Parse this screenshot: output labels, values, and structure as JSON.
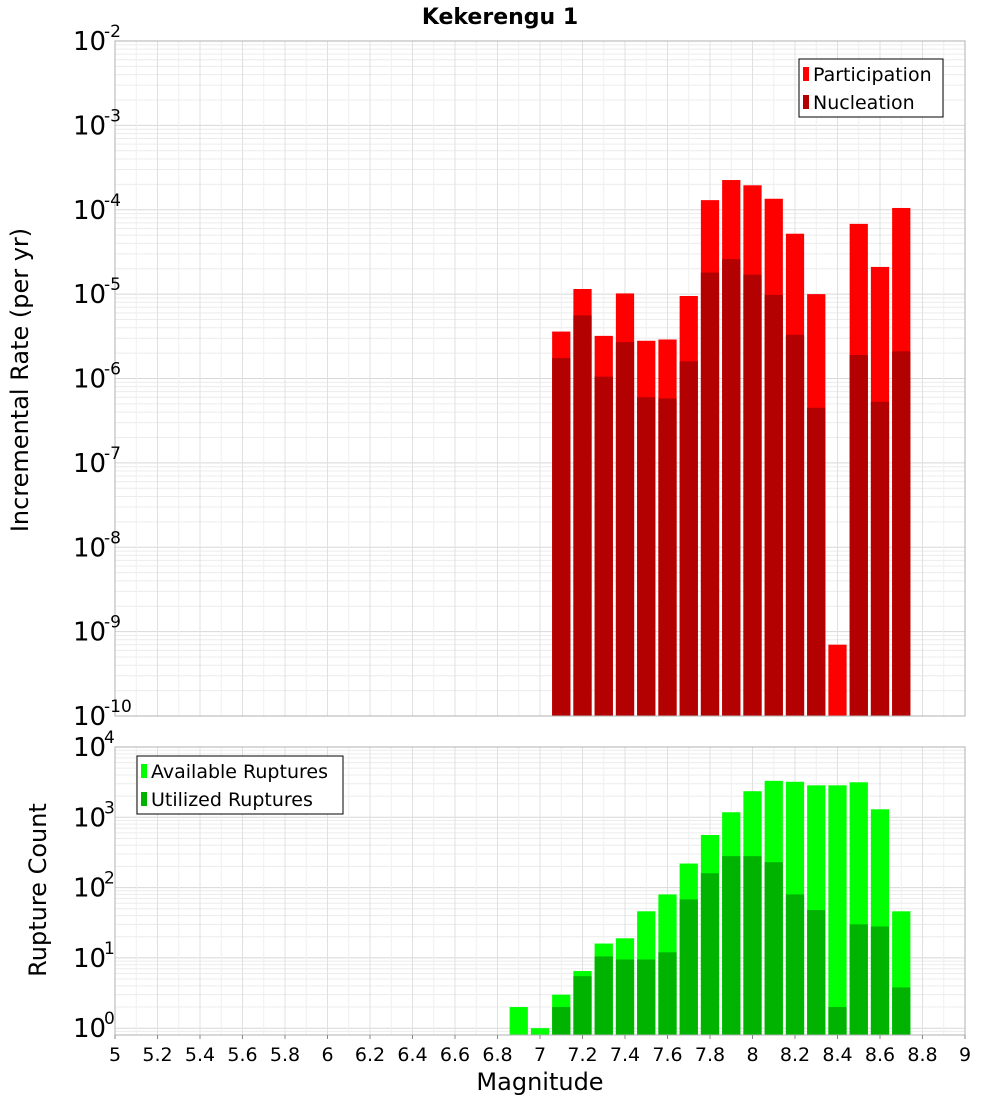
{
  "chart_data": [
    {
      "type": "bar",
      "title": "Kekerengu 1",
      "xlabel": "",
      "ylabel": "Incremental Rate (per yr)",
      "yscale": "log",
      "ylim": [
        1e-10,
        0.01
      ],
      "xlim": [
        5,
        9
      ],
      "legend_position": "top-right",
      "grid": true,
      "x": [
        7.1,
        7.2,
        7.3,
        7.4,
        7.5,
        7.6,
        7.7,
        7.8,
        7.9,
        8.0,
        8.1,
        8.2,
        8.3,
        8.4,
        8.5,
        8.6,
        8.7
      ],
      "series": [
        {
          "name": "Participation",
          "color": "#ff0000",
          "values": [
            3.6e-06,
            1.15e-05,
            3.2e-06,
            1.02e-05,
            2.8e-06,
            2.9e-06,
            9.5e-06,
            0.00013,
            0.000225,
            0.000195,
            0.000135,
            5.2e-05,
            1e-05,
            7e-10,
            6.8e-05,
            2.1e-05,
            0.000105
          ]
        },
        {
          "name": "Nucleation",
          "color": "#b30000",
          "values": [
            1.75e-06,
            5.6e-06,
            1.05e-06,
            2.7e-06,
            6e-07,
            5.8e-07,
            1.6e-06,
            1.8e-05,
            2.6e-05,
            1.7e-05,
            9.8e-06,
            3.3e-06,
            4.5e-07,
            1e-10,
            1.9e-06,
            5.3e-07,
            2.1e-06
          ]
        }
      ]
    },
    {
      "type": "bar",
      "title": "",
      "xlabel": "Magnitude",
      "ylabel": "Rupture Count",
      "yscale": "log",
      "ylim": [
        0.8,
        10000
      ],
      "xlim": [
        5,
        9
      ],
      "legend_position": "top-left",
      "grid": true,
      "x_ticks": [
        "5",
        "5.2",
        "5.4",
        "5.6",
        "5.8",
        "6",
        "6.2",
        "6.4",
        "6.6",
        "6.8",
        "7",
        "7.2",
        "7.4",
        "7.6",
        "7.8",
        "8",
        "8.2",
        "8.4",
        "8.6",
        "8.8",
        "9"
      ],
      "x": [
        6.9,
        7.0,
        7.1,
        7.2,
        7.3,
        7.4,
        7.5,
        7.6,
        7.7,
        7.8,
        7.9,
        8.0,
        8.1,
        8.2,
        8.3,
        8.4,
        8.5,
        8.6,
        8.7
      ],
      "series": [
        {
          "name": "Available Ruptures",
          "color": "#00ff00",
          "values": [
            2,
            1,
            3,
            6.5,
            16,
            19,
            46,
            80,
            220,
            560,
            1180,
            2350,
            3300,
            3200,
            2850,
            2850,
            3150,
            1300,
            46
          ]
        },
        {
          "name": "Utilized Ruptures",
          "color": "#00b300",
          "values": [
            0,
            0,
            2,
            5.5,
            10.5,
            9.5,
            9.5,
            12,
            68,
            160,
            280,
            280,
            230,
            80,
            48,
            2,
            30,
            28,
            3.8
          ]
        }
      ]
    }
  ]
}
